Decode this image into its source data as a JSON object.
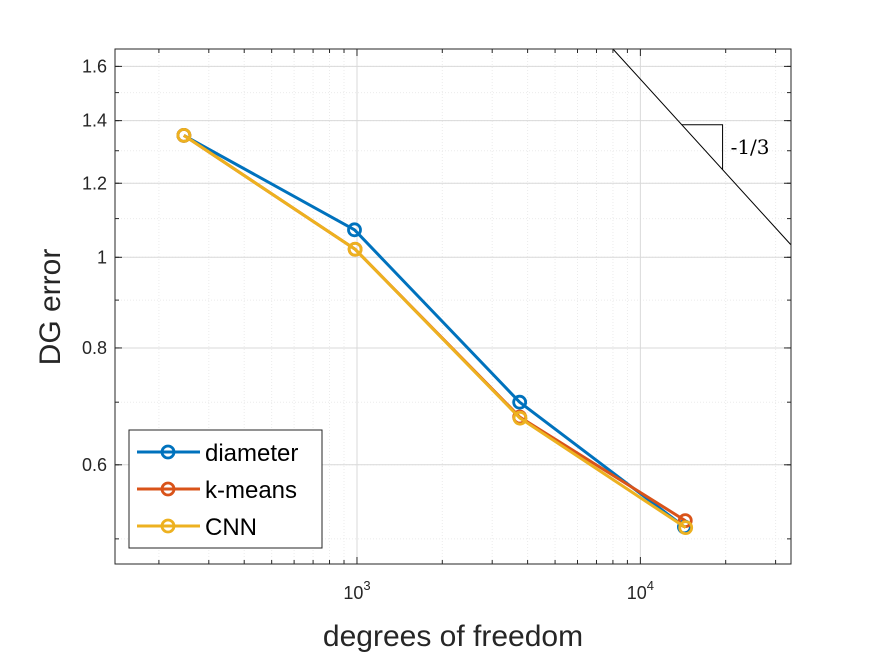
{
  "chart_data": {
    "type": "line",
    "xscale": "log",
    "yscale": "log",
    "xlabel": "degrees of freedom",
    "ylabel": "DG error",
    "xlim": [
      140,
      34000
    ],
    "ylim": [
      0.47,
      1.67
    ],
    "grid": true,
    "minor_grid": true,
    "legend_position": "bottom-left",
    "xticks": [
      {
        "value": 1000,
        "base": "10",
        "exp": "3"
      },
      {
        "value": 10000,
        "base": "10",
        "exp": "4"
      }
    ],
    "yticks": [
      {
        "value": 0.6,
        "label": "0.6"
      },
      {
        "value": 0.8,
        "label": "0.8"
      },
      {
        "value": 1.0,
        "label": "1"
      },
      {
        "value": 1.2,
        "label": "1.2"
      },
      {
        "value": 1.4,
        "label": "1.4"
      },
      {
        "value": 1.6,
        "label": "1.6"
      }
    ],
    "series": [
      {
        "name": "diameter",
        "color": "#0072BD",
        "x": [
          245,
          980,
          3750,
          14300
        ],
        "y": [
          1.35,
          1.07,
          0.7,
          0.515
        ]
      },
      {
        "name": "k-means",
        "color": "#D95319",
        "x": [
          245,
          985,
          3750,
          14400
        ],
        "y": [
          1.35,
          1.02,
          0.675,
          0.523
        ]
      },
      {
        "name": "CNN",
        "color": "#EDB120",
        "x": [
          245,
          985,
          3760,
          14450
        ],
        "y": [
          1.35,
          1.02,
          0.673,
          0.514
        ]
      }
    ],
    "reference_slope": {
      "label": "-1/3",
      "value": -0.3333,
      "color": "#000000"
    }
  }
}
